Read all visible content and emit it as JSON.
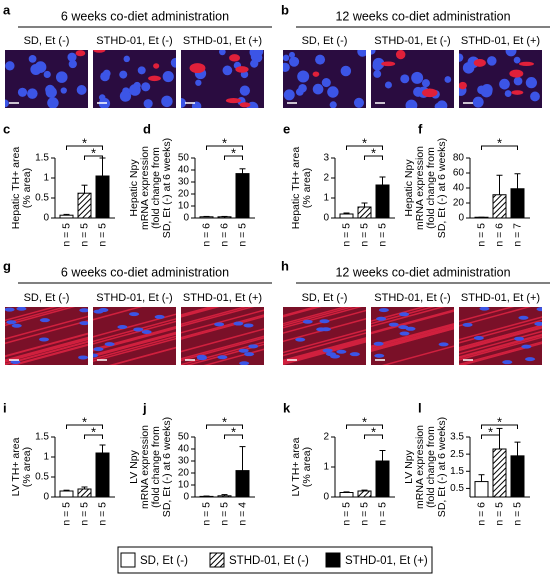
{
  "image_panels": [
    {
      "letter": "a",
      "header": "6 weeks co-diet administration",
      "labels": [
        "SD, Et (-)",
        "STHD-01, Et (-)",
        "STHD-01, Et (+)"
      ]
    },
    {
      "letter": "b",
      "header": "12 weeks co-diet administration",
      "labels": [
        "SD, Et (-)",
        "STHD-01, Et (-)",
        "STHD-01, Et (+)"
      ]
    },
    {
      "letter": "g",
      "header": "6 weeks co-diet administration",
      "labels": [
        "SD, Et (-)",
        "STHD-01, Et (-)",
        "STHD-01, Et (+)"
      ]
    },
    {
      "letter": "h",
      "header": "12 weeks co-diet administration",
      "labels": [
        "SD, Et (-)",
        "STHD-01, Et (-)",
        "STHD-01, Et (+)"
      ]
    }
  ],
  "legend": {
    "items": [
      "SD, Et (-)",
      "STHD-01, Et (-)",
      "STHD-01, Et (+)"
    ],
    "fills": [
      "#ffffff",
      "hatch",
      "#000000"
    ]
  },
  "chart_data": [
    {
      "type": "bar",
      "panel": "c",
      "ylabel": [
        "Hepatic TH+ area",
        "(% area)"
      ],
      "categories": [
        "n = 5",
        "n = 5",
        "n = 5"
      ],
      "values": [
        0.07,
        0.62,
        1.05
      ],
      "errors": [
        0.02,
        0.2,
        0.45
      ],
      "ylim": [
        0,
        1.5
      ],
      "yticks": [
        0,
        0.5,
        1,
        1.5
      ],
      "significance": [
        {
          "from": 0,
          "to": 2,
          "label": "*"
        },
        {
          "from": 1,
          "to": 2,
          "label": "*"
        }
      ]
    },
    {
      "type": "bar",
      "panel": "d",
      "ylabel": [
        "Hepatic Npy",
        "mRNA expression",
        "(fold change from",
        "SD, Et (-) at 6 weeks)"
      ],
      "categories": [
        "n = 6",
        "n = 6",
        "n = 5"
      ],
      "values": [
        1,
        1,
        37
      ],
      "errors": [
        0.3,
        0.3,
        4
      ],
      "ylim": [
        0,
        50
      ],
      "yticks": [
        0,
        10,
        20,
        30,
        40,
        50
      ],
      "significance": [
        {
          "from": 0,
          "to": 2,
          "label": "*"
        },
        {
          "from": 1,
          "to": 2,
          "label": "*"
        }
      ]
    },
    {
      "type": "bar",
      "panel": "e",
      "ylabel": [
        "Hepatic TH+ area",
        "(% area)"
      ],
      "categories": [
        "n = 5",
        "n = 5",
        "n = 5"
      ],
      "values": [
        0.2,
        0.55,
        1.65
      ],
      "errors": [
        0.05,
        0.2,
        0.4
      ],
      "ylim": [
        0,
        3
      ],
      "yticks": [
        0,
        1,
        2,
        3
      ],
      "significance": [
        {
          "from": 0,
          "to": 2,
          "label": "*"
        },
        {
          "from": 1,
          "to": 2,
          "label": "*"
        }
      ]
    },
    {
      "type": "bar",
      "panel": "f",
      "ylabel": [
        "Hepatic Npy",
        "mRNA expression",
        "(fold change from",
        "SD, Et (-) at 6 weeks)"
      ],
      "categories": [
        "n = 5",
        "n = 6",
        "n = 7"
      ],
      "values": [
        1,
        31,
        39
      ],
      "errors": [
        0,
        26,
        20
      ],
      "ylim": [
        0,
        80
      ],
      "yticks": [
        0,
        20,
        40,
        60,
        80
      ],
      "significance": [
        {
          "from": 0,
          "to": 2,
          "label": "*"
        }
      ]
    },
    {
      "type": "bar",
      "panel": "i",
      "ylabel": [
        "LV TH+ area",
        "(% area)"
      ],
      "categories": [
        "n = 5",
        "n = 5",
        "n = 5"
      ],
      "values": [
        0.15,
        0.2,
        1.1
      ],
      "errors": [
        0.02,
        0.05,
        0.2
      ],
      "ylim": [
        0,
        1.5
      ],
      "yticks": [
        0,
        0.5,
        1,
        1.5
      ],
      "significance": [
        {
          "from": 0,
          "to": 2,
          "label": "*"
        },
        {
          "from": 1,
          "to": 2,
          "label": "*"
        }
      ]
    },
    {
      "type": "bar",
      "panel": "j",
      "ylabel": [
        "LV Npy",
        "mRNA expression",
        "(fold change from",
        "SD, Et (-) at 6 weeks)"
      ],
      "categories": [
        "n = 5",
        "n = 5",
        "n = 4"
      ],
      "values": [
        0.5,
        1,
        22
      ],
      "errors": [
        0.3,
        1,
        20
      ],
      "ylim": [
        0,
        50
      ],
      "yticks": [
        0,
        10,
        20,
        30,
        40,
        50
      ],
      "significance": [
        {
          "from": 0,
          "to": 2,
          "label": "*"
        },
        {
          "from": 1,
          "to": 2,
          "label": "*"
        }
      ]
    },
    {
      "type": "bar",
      "panel": "k",
      "ylabel": [
        "LV TH+ area",
        "(% area)"
      ],
      "categories": [
        "n = 5",
        "n = 5",
        "n = 5"
      ],
      "values": [
        0.15,
        0.2,
        1.2
      ],
      "errors": [
        0.02,
        0.03,
        0.35
      ],
      "ylim": [
        0,
        2
      ],
      "yticks": [
        0,
        1,
        2
      ],
      "significance": [
        {
          "from": 0,
          "to": 2,
          "label": "*"
        },
        {
          "from": 1,
          "to": 2,
          "label": "*"
        }
      ]
    },
    {
      "type": "bar",
      "panel": "l",
      "ylabel": [
        "LV Npy",
        "mRNA expression",
        "(fold change from",
        "SD, Et (-) at 6 weeks)"
      ],
      "categories": [
        "n = 6",
        "n = 5",
        "n = 5"
      ],
      "values": [
        0.9,
        2.8,
        2.4
      ],
      "errors": [
        0.4,
        1.2,
        0.8
      ],
      "ylim": [
        0,
        3.5
      ],
      "yticks": [
        0.5,
        1.5,
        2.5,
        3.5
      ],
      "significance": [
        {
          "from": 0,
          "to": 2,
          "label": "*"
        },
        {
          "from": 0,
          "to": 1,
          "label": "*"
        }
      ]
    }
  ]
}
